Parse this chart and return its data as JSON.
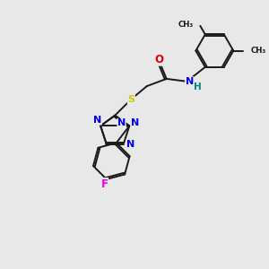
{
  "background_color": "#e8e8e8",
  "bond_color": "#1a1a1a",
  "atom_colors": {
    "N": "#0000ee",
    "O": "#dd0000",
    "S": "#cccc00",
    "F": "#ee00ee",
    "H": "#008080",
    "C": "#1a1a1a"
  },
  "figsize": [
    3.0,
    3.0
  ],
  "dpi": 100
}
